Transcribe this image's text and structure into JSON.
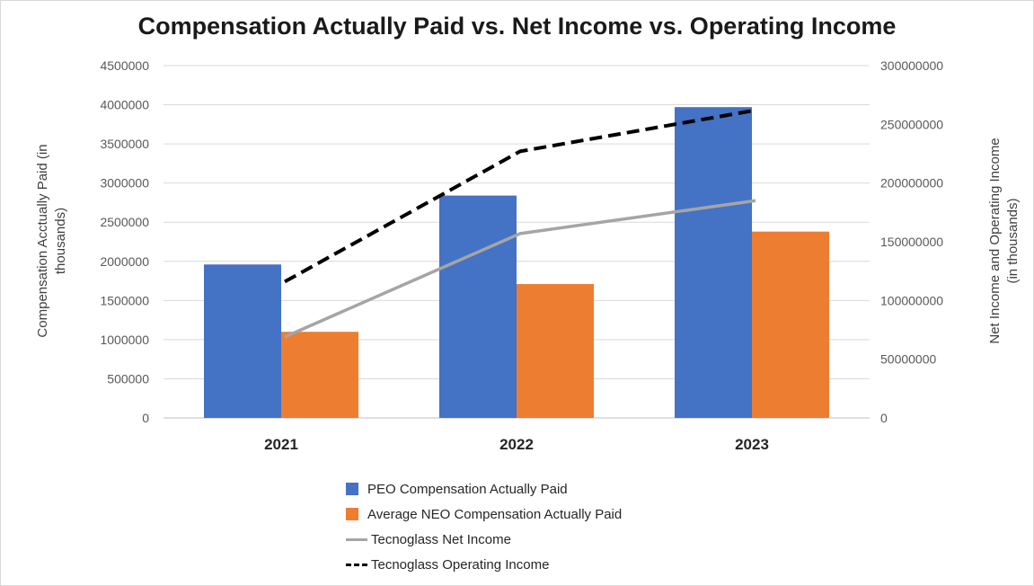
{
  "chart_data": {
    "type": "bar",
    "title": "Compensation Actually Paid vs. Net Income vs. Operating Income",
    "categories": [
      "2021",
      "2022",
      "2023"
    ],
    "y_left": {
      "label": "Compensation Acctually Paid (in thousands)",
      "label_lines": [
        "Compensation Acctually Paid (in",
        "thousands)"
      ],
      "ylim": [
        0,
        4500000
      ],
      "ticks": [
        "0",
        "500000",
        "1000000",
        "1500000",
        "2000000",
        "2500000",
        "3000000",
        "3500000",
        "4000000",
        "4500000"
      ]
    },
    "y_right": {
      "label": "Net Income and Operating Income (in thousands)",
      "label_lines": [
        "Net Income and Operating Income",
        "(in thousands)"
      ],
      "ylim": [
        0,
        300000000
      ],
      "ticks": [
        "0",
        "50000000",
        "100000000",
        "150000000",
        "200000000",
        "250000000",
        "300000000"
      ]
    },
    "series": [
      {
        "name": "PEO Compensation Actually Paid",
        "type": "bar",
        "axis": "left",
        "color": "#4472c4",
        "values": [
          1960000,
          2840000,
          3970000
        ]
      },
      {
        "name": "Average NEO Compensation Actually Paid",
        "type": "bar",
        "axis": "left",
        "color": "#ed7d31",
        "values": [
          1100000,
          1710000,
          2380000
        ]
      },
      {
        "name": "Tecnoglass Net Income",
        "type": "line",
        "axis": "right",
        "color": "#a5a5a5",
        "style": "solid",
        "values": [
          69000000,
          157000000,
          185000000
        ]
      },
      {
        "name": "Tecnoglass Operating Income",
        "type": "line",
        "axis": "right",
        "color": "#000000",
        "style": "dashed",
        "values": [
          116000000,
          227000000,
          262000000
        ]
      }
    ],
    "grid": true,
    "legend_position": "bottom"
  }
}
